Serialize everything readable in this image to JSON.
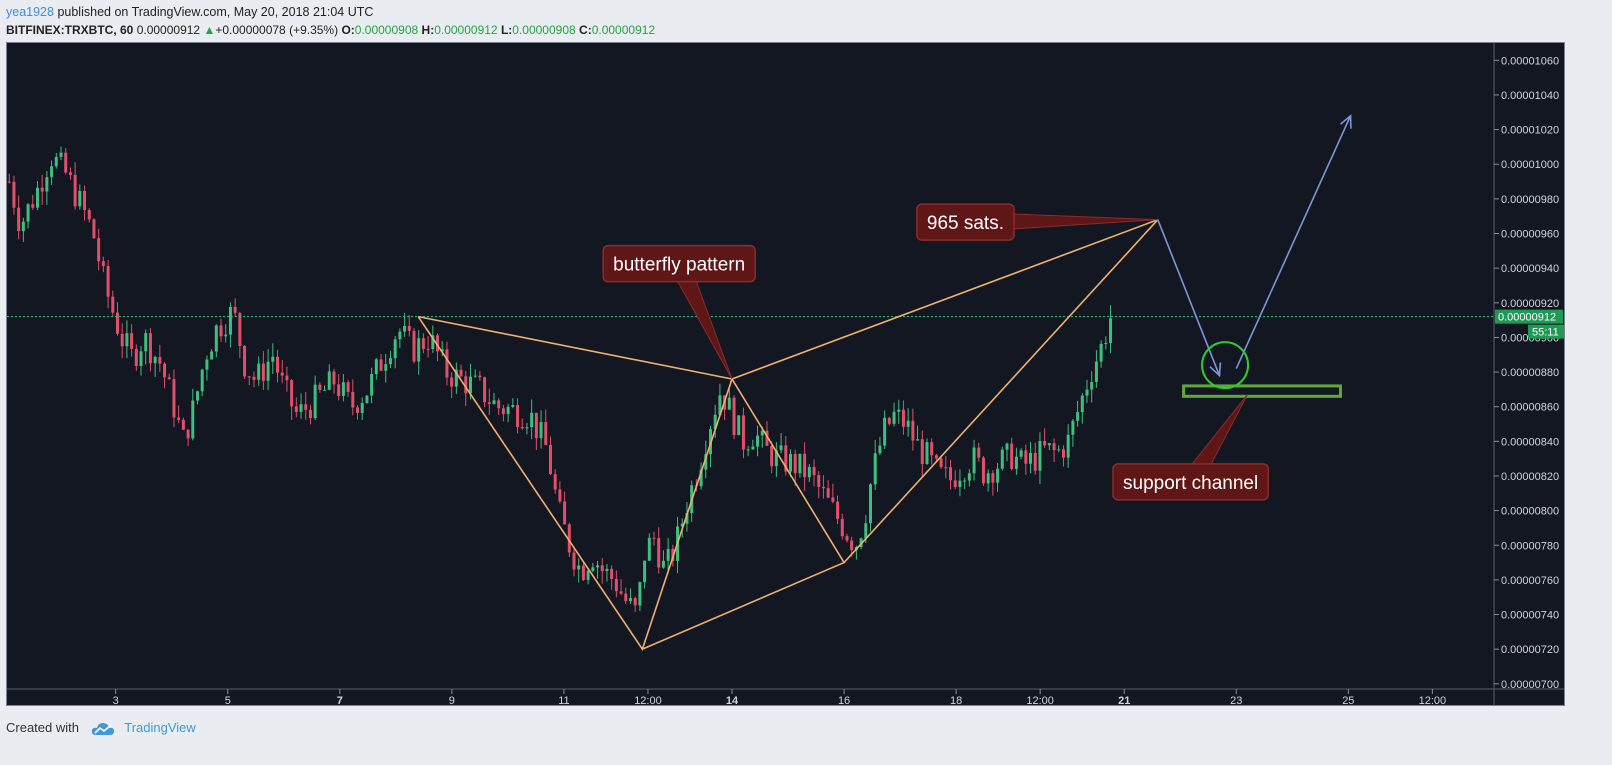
{
  "header": {
    "user": "yea1928",
    "published_text": "published on TradingView.com, May 20, 2018 21:04 UTC"
  },
  "symbol_bar": {
    "symbol": "BITFINEX:TRXBTC, 60",
    "price": "0.00000912",
    "change_arrow": "▲",
    "change": "+0.00000078 (+9.35%)",
    "o_label": "O:",
    "o_value": "0.00000908",
    "h_label": "H:",
    "h_value": "0.00000912",
    "l_label": "L:",
    "l_value": "0.00000908",
    "c_label": "C:",
    "c_value": "0.00000912"
  },
  "footer": {
    "created_with": "Created with",
    "brand": "TradingView"
  },
  "colors": {
    "background": "#131722",
    "up": "#3fbf7f",
    "down": "#e0506a",
    "pattern": "#f0b070",
    "arrow": "#7f95d6",
    "callout_fill": "#5e1616",
    "callout_border": "#8a2c2c",
    "support_box": "#5fa83a",
    "target_circle": "#2ecc2e",
    "current_price_line": "#33d17a"
  },
  "chart_data": {
    "type": "candlestick",
    "symbol": "BITFINEX:TRXBTC",
    "interval": "60",
    "y_ticks": [
      "0.00001060",
      "0.00001040",
      "0.00001020",
      "0.00001000",
      "0.00000980",
      "0.00000960",
      "0.00000940",
      "0.00000920",
      "0.00000900",
      "0.00000880",
      "0.00000860",
      "0.00000840",
      "0.00000820",
      "0.00000800",
      "0.00000780",
      "0.00000760",
      "0.00000740",
      "0.00000720",
      "0.00000700"
    ],
    "ylim": [
      6.97e-06,
      1.07e-05
    ],
    "x_ticks": [
      {
        "label": "3",
        "bold": false,
        "x": 1.2
      },
      {
        "label": "5",
        "bold": false,
        "x": 2.2
      },
      {
        "label": "7",
        "bold": true,
        "x": 3.2
      },
      {
        "label": "9",
        "bold": false,
        "x": 4.2
      },
      {
        "label": "11",
        "bold": false,
        "x": 5.2
      },
      {
        "label": "12:00",
        "bold": false,
        "x": 5.95
      },
      {
        "label": "14",
        "bold": true,
        "x": 6.7
      },
      {
        "label": "16",
        "bold": false,
        "x": 7.7
      },
      {
        "label": "18",
        "bold": false,
        "x": 8.7
      },
      {
        "label": "12:00",
        "bold": false,
        "x": 9.45
      },
      {
        "label": "21",
        "bold": true,
        "x": 10.2
      },
      {
        "label": "23",
        "bold": false,
        "x": 11.2
      },
      {
        "label": "25",
        "bold": false,
        "x": 12.2
      },
      {
        "label": "12:00",
        "bold": false,
        "x": 12.95
      }
    ],
    "xlim": [
      0.23,
      13.5
    ],
    "current_price": {
      "value": "0.00000912",
      "y": 9.12e-06,
      "countdown": "55:11"
    },
    "price_path": [
      [
        0.25,
        9.9e-06
      ],
      [
        0.35,
        9.65e-06
      ],
      [
        0.5,
        9.85e-06
      ],
      [
        0.62,
        1.005e-05
      ],
      [
        0.75,
        9.95e-06
      ],
      [
        0.9,
        9.75e-06
      ],
      [
        1.0,
        9.6e-06
      ],
      [
        1.1,
        9.3e-06
      ],
      [
        1.25,
        9e-06
      ],
      [
        1.35,
        8.88e-06
      ],
      [
        1.45,
        9e-06
      ],
      [
        1.6,
        8.85e-06
      ],
      [
        1.72,
        8.6e-06
      ],
      [
        1.8,
        8.4e-06
      ],
      [
        1.9,
        8.6e-06
      ],
      [
        2.0,
        8.9e-06
      ],
      [
        2.1,
        9.05e-06
      ],
      [
        2.25,
        9.15e-06
      ],
      [
        2.35,
        8.85e-06
      ],
      [
        2.45,
        8.75e-06
      ],
      [
        2.6,
        8.9e-06
      ],
      [
        2.7,
        8.7e-06
      ],
      [
        2.82,
        8.55e-06
      ],
      [
        3.0,
        8.65e-06
      ],
      [
        3.15,
        8.75e-06
      ],
      [
        3.3,
        8.6e-06
      ],
      [
        3.45,
        8.7e-06
      ],
      [
        3.6,
        8.9e-06
      ],
      [
        3.72,
        9.05e-06
      ],
      [
        3.85,
        8.93e-06
      ],
      [
        4.0,
        9e-06
      ],
      [
        4.15,
        8.8e-06
      ],
      [
        4.3,
        8.75e-06
      ],
      [
        4.45,
        8.7e-06
      ],
      [
        4.6,
        8.6e-06
      ],
      [
        4.75,
        8.58e-06
      ],
      [
        4.9,
        8.55e-06
      ],
      [
        5.05,
        8.35e-06
      ],
      [
        5.15,
        8e-06
      ],
      [
        5.25,
        7.8e-06
      ],
      [
        5.35,
        7.65e-06
      ],
      [
        5.45,
        7.75e-06
      ],
      [
        5.55,
        7.65e-06
      ],
      [
        5.65,
        7.6e-06
      ],
      [
        5.75,
        7.48e-06
      ],
      [
        5.85,
        7.4e-06
      ],
      [
        5.92,
        7.75e-06
      ],
      [
        6.0,
        7.85e-06
      ],
      [
        6.1,
        7.65e-06
      ],
      [
        6.2,
        7.8e-06
      ],
      [
        6.3,
        8.05e-06
      ],
      [
        6.4,
        8.25e-06
      ],
      [
        6.5,
        8.5e-06
      ],
      [
        6.6,
        8.7e-06
      ],
      [
        6.7,
        8.55e-06
      ],
      [
        6.8,
        8.4e-06
      ],
      [
        6.9,
        8.45e-06
      ],
      [
        7.0,
        8.35e-06
      ],
      [
        7.1,
        8.3e-06
      ],
      [
        7.2,
        8.28e-06
      ],
      [
        7.3,
        8.25e-06
      ],
      [
        7.4,
        8.2e-06
      ],
      [
        7.5,
        8.1e-06
      ],
      [
        7.6,
        8e-06
      ],
      [
        7.7,
        7.9e-06
      ],
      [
        7.8,
        7.8e-06
      ],
      [
        7.88,
        7.95e-06
      ],
      [
        7.95,
        8.2e-06
      ],
      [
        8.05,
        8.45e-06
      ],
      [
        8.15,
        8.55e-06
      ],
      [
        8.25,
        8.5e-06
      ],
      [
        8.35,
        8.38e-06
      ],
      [
        8.45,
        8.3e-06
      ],
      [
        8.55,
        8.2e-06
      ],
      [
        8.65,
        8.18e-06
      ],
      [
        8.75,
        8.25e-06
      ],
      [
        8.85,
        8.3e-06
      ],
      [
        8.95,
        8.22e-06
      ],
      [
        9.1,
        8.28e-06
      ],
      [
        9.2,
        8.32e-06
      ],
      [
        9.3,
        8.26e-06
      ],
      [
        9.4,
        8.3e-06
      ],
      [
        9.5,
        8.35e-06
      ],
      [
        9.6,
        8.33e-06
      ],
      [
        9.7,
        8.4e-06
      ],
      [
        9.8,
        8.6e-06
      ],
      [
        9.9,
        8.8e-06
      ],
      [
        10.0,
        8.95e-06
      ],
      [
        10.08,
        9.12e-06
      ]
    ],
    "pattern_points": [
      {
        "x": 3.9,
        "y": 9.12e-06
      },
      {
        "x": 5.9,
        "y": 7.2e-06
      },
      {
        "x": 6.7,
        "y": 8.76e-06
      },
      {
        "x": 7.7,
        "y": 7.7e-06
      },
      {
        "x": 10.5,
        "y": 9.68e-06
      }
    ],
    "arrows": [
      {
        "from": [
          10.5,
          9.68e-06
        ],
        "to": [
          11.05,
          8.78e-06
        ]
      },
      {
        "from": [
          11.2,
          8.82e-06
        ],
        "to": [
          12.22,
          1.028e-05
        ]
      }
    ],
    "support_box": {
      "x1": 10.73,
      "x2": 12.13,
      "y1": 8.66e-06,
      "y2": 8.72e-06
    },
    "target_circle": {
      "x": 11.1,
      "y": 8.84e-06
    },
    "annotations": [
      {
        "text": "965 sats.",
        "x": 8.35,
        "y": 9.77e-06,
        "tx": 10.5,
        "ty": 9.68e-06
      },
      {
        "text": "butterfly pattern",
        "x": 5.55,
        "y": 9.53e-06,
        "tx": 6.7,
        "ty": 8.76e-06
      },
      {
        "text": "support channel",
        "x": 10.1,
        "y": 8.27e-06,
        "tx": 11.3,
        "ty": 8.67e-06
      }
    ]
  }
}
